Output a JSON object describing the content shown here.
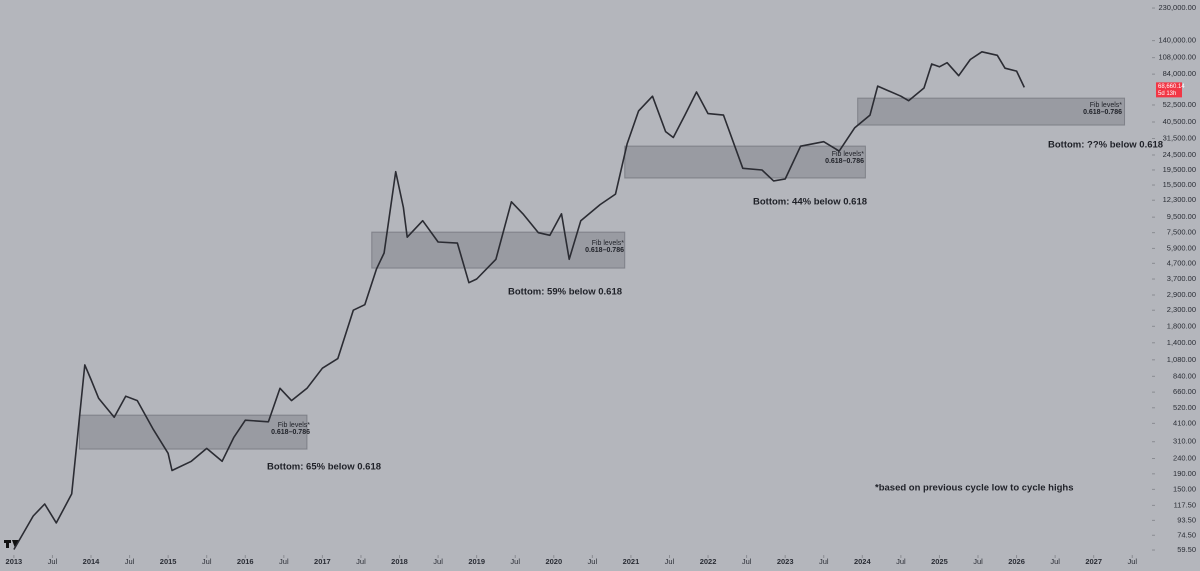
{
  "chart_data": {
    "type": "line",
    "log_scale": true,
    "color": "#2b2c33",
    "x": [
      2013.0,
      2013.25,
      2013.4,
      2013.55,
      2013.75,
      2013.92,
      2014.0,
      2014.1,
      2014.3,
      2014.45,
      2014.6,
      2014.8,
      2015.0,
      2015.05,
      2015.3,
      2015.5,
      2015.7,
      2015.85,
      2016.0,
      2016.3,
      2016.45,
      2016.6,
      2016.8,
      2017.0,
      2017.2,
      2017.4,
      2017.55,
      2017.7,
      2017.8,
      2017.95,
      2018.05,
      2018.1,
      2018.3,
      2018.5,
      2018.75,
      2018.9,
      2019.0,
      2019.25,
      2019.45,
      2019.6,
      2019.8,
      2019.95,
      2020.1,
      2020.2,
      2020.35,
      2020.6,
      2020.8,
      2020.95,
      2021.1,
      2021.28,
      2021.45,
      2021.55,
      2021.7,
      2021.85,
      2022.0,
      2022.2,
      2022.45,
      2022.7,
      2022.85,
      2023.0,
      2023.2,
      2023.5,
      2023.7,
      2023.9,
      2024.1,
      2024.2,
      2024.5,
      2024.6,
      2024.8,
      2024.9,
      2025.0,
      2025.1,
      2025.25,
      2025.4,
      2025.55,
      2025.75,
      2025.85,
      2026.0,
      2026.1
    ],
    "values": [
      60,
      100,
      120,
      90,
      140,
      1000,
      800,
      600,
      450,
      620,
      580,
      380,
      260,
      200,
      230,
      280,
      230,
      330,
      430,
      420,
      700,
      580,
      700,
      950,
      1100,
      2300,
      2500,
      4300,
      5500,
      19000,
      11000,
      7000,
      9000,
      6500,
      6400,
      3500,
      3700,
      5000,
      12000,
      10000,
      7500,
      7200,
      10000,
      5000,
      9000,
      11500,
      13500,
      29000,
      48000,
      60000,
      35000,
      32000,
      45000,
      64000,
      46000,
      45000,
      20000,
      19500,
      16500,
      17000,
      28000,
      30000,
      26000,
      37000,
      45000,
      70000,
      60000,
      56000,
      68000,
      98000,
      94000,
      100000,
      82000,
      105000,
      118000,
      112000,
      92000,
      88000,
      68660.14
    ],
    "xlim": [
      2012.82,
      2027.73
    ],
    "ylim": [
      56,
      260000
    ],
    "xticks": [
      {
        "value": 2013,
        "label": "2013"
      },
      {
        "value": 2013.5,
        "label": "Jul"
      },
      {
        "value": 2014,
        "label": "2014"
      },
      {
        "value": 2014.5,
        "label": "Jul"
      },
      {
        "value": 2015,
        "label": "2015"
      },
      {
        "value": 2015.5,
        "label": "Jul"
      },
      {
        "value": 2016,
        "label": "2016"
      },
      {
        "value": 2016.5,
        "label": "Jul"
      },
      {
        "value": 2017,
        "label": "2017"
      },
      {
        "value": 2017.5,
        "label": "Jul"
      },
      {
        "value": 2018,
        "label": "2018"
      },
      {
        "value": 2018.5,
        "label": "Jul"
      },
      {
        "value": 2019,
        "label": "2019"
      },
      {
        "value": 2019.5,
        "label": "Jul"
      },
      {
        "value": 2020,
        "label": "2020"
      },
      {
        "value": 2020.5,
        "label": "Jul"
      },
      {
        "value": 2021,
        "label": "2021"
      },
      {
        "value": 2021.5,
        "label": "Jul"
      },
      {
        "value": 2022,
        "label": "2022"
      },
      {
        "value": 2022.5,
        "label": "Jul"
      },
      {
        "value": 2023,
        "label": "2023"
      },
      {
        "value": 2023.5,
        "label": "Jul"
      },
      {
        "value": 2024,
        "label": "2024"
      },
      {
        "value": 2024.5,
        "label": "Jul"
      },
      {
        "value": 2025,
        "label": "2025"
      },
      {
        "value": 2025.5,
        "label": "Jul"
      },
      {
        "value": 2026,
        "label": "2026"
      },
      {
        "value": 2026.5,
        "label": "Jul"
      },
      {
        "value": 2027,
        "label": "2027"
      },
      {
        "value": 2027.5,
        "label": "Jul"
      }
    ],
    "yticks": [
      {
        "value": 230000,
        "label": "230,000.00"
      },
      {
        "value": 140000,
        "label": "140,000.00"
      },
      {
        "value": 108000,
        "label": "108,000.00"
      },
      {
        "value": 84000,
        "label": "84,000.00"
      },
      {
        "value": 52500,
        "label": "52,500.00"
      },
      {
        "value": 40500,
        "label": "40,500.00"
      },
      {
        "value": 31500,
        "label": "31,500.00"
      },
      {
        "value": 24500,
        "label": "24,500.00"
      },
      {
        "value": 19500,
        "label": "19,500.00"
      },
      {
        "value": 15500,
        "label": "15,500.00"
      },
      {
        "value": 12300,
        "label": "12,300.00"
      },
      {
        "value": 9500,
        "label": "9,500.00"
      },
      {
        "value": 7500,
        "label": "7,500.00"
      },
      {
        "value": 5900,
        "label": "5,900.00"
      },
      {
        "value": 4700,
        "label": "4,700.00"
      },
      {
        "value": 3700,
        "label": "3,700.00"
      },
      {
        "value": 2900,
        "label": "2,900.00"
      },
      {
        "value": 2300,
        "label": "2,300.00"
      },
      {
        "value": 1800,
        "label": "1,800.00"
      },
      {
        "value": 1400,
        "label": "1,400.00"
      },
      {
        "value": 1080,
        "label": "1,080.00"
      },
      {
        "value": 840,
        "label": "840.00"
      },
      {
        "value": 660,
        "label": "660.00"
      },
      {
        "value": 520,
        "label": "520.00"
      },
      {
        "value": 410,
        "label": "410.00"
      },
      {
        "value": 310,
        "label": "310.00"
      },
      {
        "value": 240,
        "label": "240.00"
      },
      {
        "value": 190,
        "label": "190.00"
      },
      {
        "value": 150,
        "label": "150.00"
      },
      {
        "value": 117.5,
        "label": "117.50"
      },
      {
        "value": 93.5,
        "label": "93.50"
      },
      {
        "value": 74.5,
        "label": "74.50"
      },
      {
        "value": 59.5,
        "label": "59.50"
      }
    ],
    "zones": [
      {
        "x": [
          2013.85,
          2016.8
        ],
        "y": [
          277,
          465
        ],
        "label": "Fib levels*",
        "sublabel": "0.618–0.786"
      },
      {
        "x": [
          2017.64,
          2020.92
        ],
        "y": [
          4370,
          7565
        ],
        "label": "Fib levels*",
        "sublabel": "0.618–0.786"
      },
      {
        "x": [
          2020.92,
          2024.04
        ],
        "y": [
          17250,
          28060
        ],
        "label": "Fib levels*",
        "sublabel": "0.618–0.786"
      },
      {
        "x": [
          2023.94,
          2027.4
        ],
        "y": [
          38650,
          58300
        ],
        "label": "Fib levels*",
        "sublabel": "0.618–0.786"
      }
    ],
    "annotations": [
      "Bottom: 65% below 0.618",
      "Bottom: 59% below 0.618",
      "Bottom: 44% below 0.618",
      "Bottom: ??% below 0.618",
      "*based on previous cycle low to cycle highs"
    ],
    "last_price_label": "68,660.14",
    "countdown": "5d 13h",
    "price_label_color": "#f23645"
  }
}
